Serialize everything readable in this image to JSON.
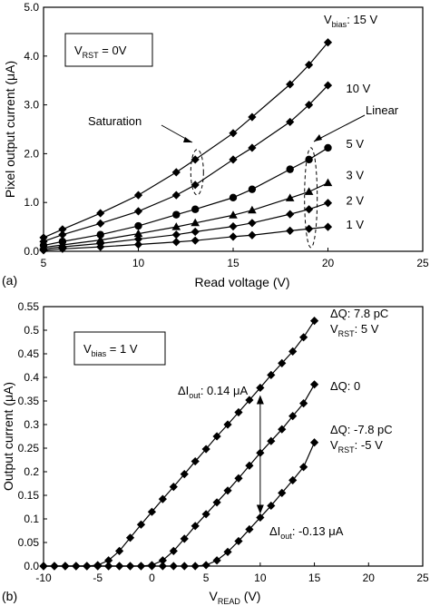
{
  "chart_data": [
    {
      "type": "line",
      "panel_label": "(a)",
      "xlabel": "Read voltage (V)",
      "ylabel": "Pixel output current (μA)",
      "xlim": [
        5,
        25
      ],
      "ylim": [
        0,
        5
      ],
      "xticks": [
        "5",
        "10",
        "15",
        "20",
        "25"
      ],
      "yticks": [
        "0.0",
        "1.0",
        "2.0",
        "3.0",
        "4.0",
        "5.0"
      ],
      "grid": false,
      "inset_box": {
        "main": "V",
        "sub": "RST",
        "tail": " = 0V"
      },
      "annotations": {
        "saturation": "Saturation",
        "linear": "Linear"
      },
      "bias_header": {
        "main": "V",
        "sub": "bias",
        "tail": ": 15 V"
      },
      "x": [
        5,
        6,
        8,
        10,
        12,
        13,
        15,
        16,
        18,
        19,
        20
      ],
      "series": [
        {
          "label": "15 V",
          "marker": "diamond",
          "values": [
            0.28,
            0.45,
            0.78,
            1.15,
            1.62,
            1.88,
            2.42,
            2.75,
            3.42,
            3.82,
            4.28
          ]
        },
        {
          "label": "10 V",
          "marker": "diamond",
          "values": [
            0.2,
            0.34,
            0.57,
            0.82,
            1.15,
            1.36,
            1.88,
            2.12,
            2.65,
            3.0,
            3.4
          ]
        },
        {
          "label": "5 V",
          "marker": "circle",
          "values": [
            0.12,
            0.2,
            0.34,
            0.52,
            0.75,
            0.86,
            1.1,
            1.27,
            1.68,
            1.88,
            2.12
          ]
        },
        {
          "label": "3 V",
          "marker": "triangle",
          "values": [
            0.08,
            0.13,
            0.23,
            0.36,
            0.5,
            0.58,
            0.74,
            0.84,
            1.09,
            1.22,
            1.4
          ]
        },
        {
          "label": "2 V",
          "marker": "diamond",
          "values": [
            0.05,
            0.09,
            0.16,
            0.25,
            0.34,
            0.4,
            0.51,
            0.58,
            0.76,
            0.86,
            0.99
          ]
        },
        {
          "label": "1 V",
          "marker": "diamond",
          "values": [
            0.02,
            0.05,
            0.09,
            0.14,
            0.19,
            0.22,
            0.3,
            0.33,
            0.42,
            0.46,
            0.5
          ]
        }
      ]
    },
    {
      "type": "line",
      "panel_label": "(b)",
      "xlabel": {
        "main": "V",
        "sub": "READ",
        "tail": " (V)"
      },
      "ylabel": "Output current (μA)",
      "xlim": [
        -10,
        25
      ],
      "ylim": [
        0,
        0.55
      ],
      "xticks": [
        "-10",
        "-5",
        "0",
        "5",
        "10",
        "15",
        "20",
        "25"
      ],
      "yticks": [
        "0.0",
        "0.05",
        "0.1",
        "0.15",
        "0.2",
        "0.25",
        "0.3",
        "0.35",
        "0.4",
        "0.45",
        "0.5",
        "0.55"
      ],
      "grid": false,
      "inset_box": {
        "main": "V",
        "sub": "bias",
        "tail": " = 1 V"
      },
      "series": [
        {
          "label_lines": [
            {
              "main": "ΔQ: 7.8 pC"
            },
            {
              "main": "V",
              "sub": "RST",
              "tail": ": 5 V"
            }
          ],
          "marker": "diamond",
          "x": [
            -10,
            -9,
            -8,
            -7,
            -6,
            -5,
            -4,
            -3,
            -2,
            -1,
            0,
            1,
            2,
            3,
            4,
            5,
            6,
            7,
            8,
            9,
            10,
            11,
            12,
            13,
            14,
            15
          ],
          "values": [
            0,
            0,
            0,
            0,
            0,
            0.002,
            0.012,
            0.032,
            0.06,
            0.088,
            0.115,
            0.142,
            0.168,
            0.195,
            0.222,
            0.248,
            0.275,
            0.3,
            0.326,
            0.352,
            0.378,
            0.405,
            0.43,
            0.455,
            0.485,
            0.52
          ]
        },
        {
          "label_lines": [
            {
              "main": "ΔQ: 0"
            }
          ],
          "marker": "diamond",
          "x": [
            -10,
            -9,
            -8,
            -7,
            -6,
            -5,
            -4,
            -3,
            -2,
            -1,
            0,
            1,
            2,
            3,
            4,
            5,
            6,
            7,
            8,
            9,
            10,
            11,
            12,
            13,
            14,
            15
          ],
          "values": [
            0,
            0,
            0,
            0,
            0,
            0,
            0,
            0,
            0,
            0,
            0.002,
            0.012,
            0.032,
            0.058,
            0.085,
            0.11,
            0.135,
            0.16,
            0.186,
            0.213,
            0.24,
            0.265,
            0.29,
            0.318,
            0.345,
            0.385
          ]
        },
        {
          "label_lines": [
            {
              "main": "ΔQ: -7.8 pC"
            },
            {
              "main": "V",
              "sub": "RST",
              "tail": ": -5 V"
            }
          ],
          "marker": "diamond",
          "x": [
            -10,
            -9,
            -8,
            -7,
            -6,
            -5,
            -4,
            -3,
            -2,
            -1,
            0,
            1,
            2,
            3,
            4,
            5,
            6,
            7,
            8,
            9,
            10,
            11,
            12,
            13,
            14,
            15
          ],
          "values": [
            0,
            0,
            0,
            0,
            0,
            0,
            0,
            0,
            0,
            0,
            0,
            0,
            0,
            0,
            0,
            0.002,
            0.012,
            0.03,
            0.053,
            0.078,
            0.103,
            0.128,
            0.155,
            0.182,
            0.21,
            0.262
          ]
        }
      ],
      "annotations": [
        {
          "main": "ΔI",
          "sub": "out",
          "tail": ": 0.14 μA"
        },
        {
          "main": "ΔI",
          "sub": "out",
          "tail": ": -0.13 μA"
        }
      ]
    }
  ]
}
